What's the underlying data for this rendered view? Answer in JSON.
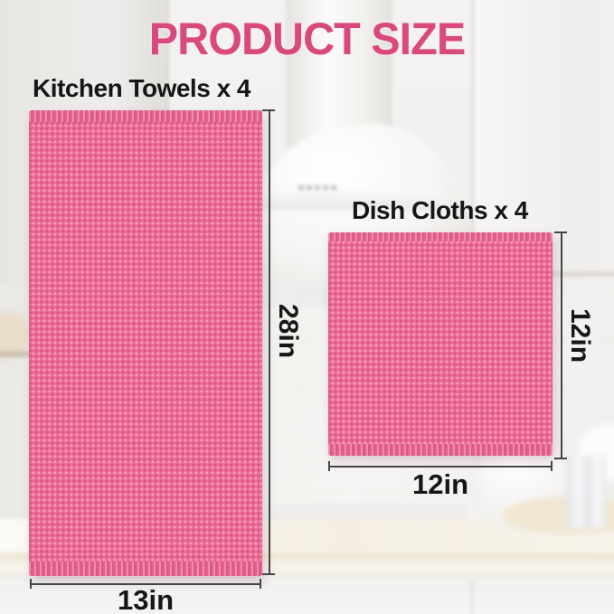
{
  "title": "PRODUCT SIZE",
  "products": [
    {
      "label": "Kitchen Towels x 4",
      "height": "28in",
      "width": "13in"
    },
    {
      "label": "Dish Cloths x 4",
      "height": "12in",
      "width": "12in"
    }
  ],
  "colors": {
    "accent_pink": "#d9497d",
    "towel_pink": "#ee6d99",
    "towel_dot_dark": "#d5537f",
    "towel_dot_light": "#f9a9c4",
    "hem_pink": "#e75f8f",
    "label_text": "#161616",
    "dimension_line": "#454545"
  }
}
